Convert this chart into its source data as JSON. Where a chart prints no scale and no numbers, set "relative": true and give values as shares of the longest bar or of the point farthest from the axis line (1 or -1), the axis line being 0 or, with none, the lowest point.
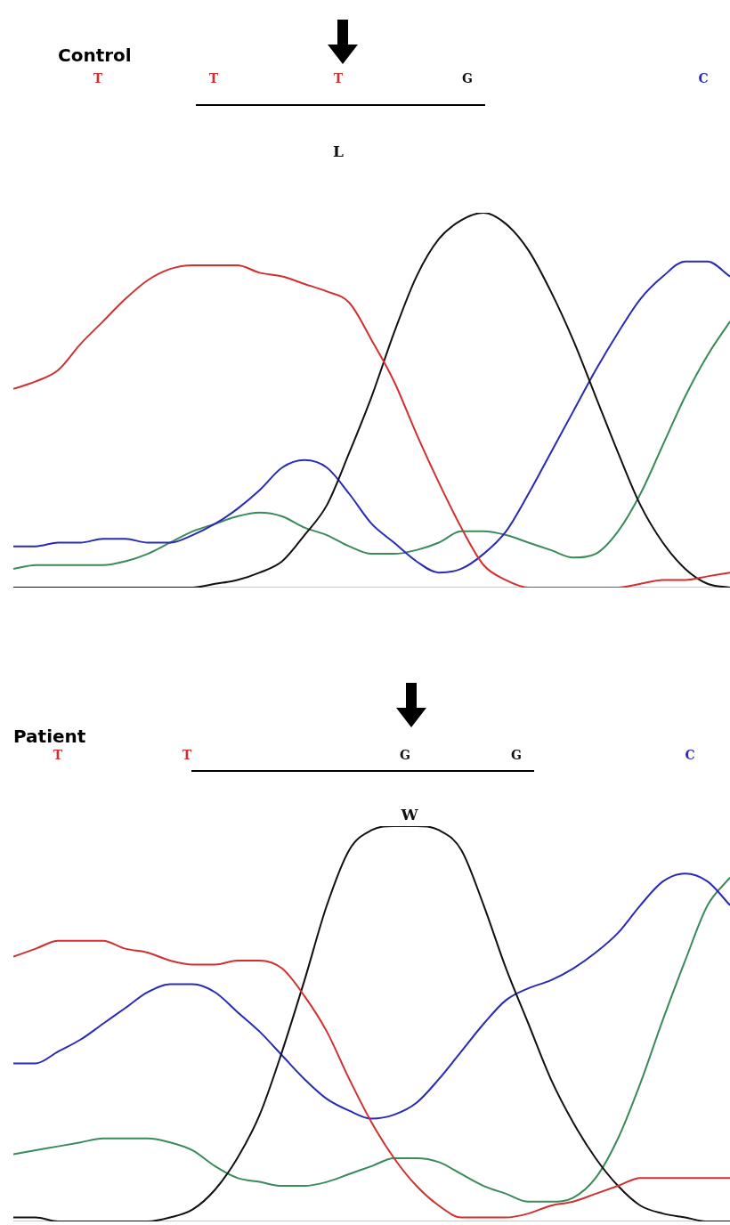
{
  "chart_data": [
    {
      "type": "line",
      "title": "Control",
      "relative": true,
      "annotations": [
        "T",
        "T",
        "T",
        "G",
        "C",
        "L"
      ],
      "categories": [
        null,
        null,
        null,
        null,
        null,
        null,
        null,
        null,
        null,
        null,
        null,
        null,
        null,
        null,
        null,
        null,
        null,
        null,
        null,
        null,
        null,
        null,
        null,
        null,
        null,
        null,
        null,
        null,
        null,
        null,
        null,
        null,
        null
      ],
      "series": [
        {
          "color": "#d03030",
          "values": [
            0.53,
            0.55,
            0.58,
            0.65,
            0.71,
            0.77,
            0.82,
            0.85,
            0.86,
            0.86,
            0.86,
            0.84,
            0.83,
            0.81,
            0.79,
            0.76,
            0.66,
            0.55,
            0.41,
            0.28,
            0.16,
            0.06,
            0.02,
            0,
            0,
            0,
            0,
            0,
            0.01,
            0.02,
            0.02,
            0.03,
            0.04
          ]
        },
        {
          "color": "#111111",
          "values": [
            0,
            0,
            0,
            0,
            0,
            0,
            0,
            0,
            0,
            0.01,
            0.02,
            0.04,
            0.07,
            0.14,
            0.22,
            0.36,
            0.51,
            0.68,
            0.83,
            0.93,
            0.98,
            1,
            0.97,
            0.9,
            0.79,
            0.66,
            0.51,
            0.36,
            0.22,
            0.12,
            0.05,
            0.01,
            0
          ]
        },
        {
          "color": "#2a2ab8",
          "values": [
            0.11,
            0.11,
            0.12,
            0.12,
            0.13,
            0.13,
            0.12,
            0.12,
            0.14,
            0.17,
            0.21,
            0.26,
            0.32,
            0.34,
            0.32,
            0.25,
            0.17,
            0.12,
            0.07,
            0.04,
            0.05,
            0.09,
            0.15,
            0.25,
            0.36,
            0.47,
            0.58,
            0.68,
            0.77,
            0.83,
            0.87,
            0.87,
            0.83
          ]
        },
        {
          "color": "#3a8a5a",
          "values": [
            0.05,
            0.06,
            0.06,
            0.06,
            0.06,
            0.07,
            0.09,
            0.12,
            0.15,
            0.17,
            0.19,
            0.2,
            0.19,
            0.16,
            0.14,
            0.11,
            0.09,
            0.09,
            0.1,
            0.12,
            0.15,
            0.15,
            0.14,
            0.12,
            0.1,
            0.08,
            0.09,
            0.15,
            0.25,
            0.38,
            0.51,
            0.62,
            0.71
          ]
        }
      ]
    },
    {
      "type": "line",
      "title": "Patient",
      "relative": true,
      "annotations": [
        "T",
        "T",
        "G",
        "G",
        "C",
        "W"
      ],
      "categories": [
        null,
        null,
        null,
        null,
        null,
        null,
        null,
        null,
        null,
        null,
        null,
        null,
        null,
        null,
        null,
        null,
        null,
        null,
        null,
        null,
        null,
        null,
        null,
        null,
        null,
        null,
        null,
        null,
        null,
        null,
        null,
        null,
        null
      ],
      "series": [
        {
          "color": "#d03030",
          "values": [
            0.67,
            0.69,
            0.71,
            0.71,
            0.71,
            0.69,
            0.68,
            0.66,
            0.65,
            0.65,
            0.66,
            0.66,
            0.64,
            0.57,
            0.48,
            0.36,
            0.25,
            0.16,
            0.09,
            0.04,
            0.01,
            0.01,
            0.01,
            0.02,
            0.04,
            0.05,
            0.07,
            0.09,
            0.11,
            0.11,
            0.11,
            0.11,
            0.11
          ]
        },
        {
          "color": "#111111",
          "values": [
            0.01,
            0.01,
            0,
            0,
            0,
            0,
            0,
            0.01,
            0.03,
            0.08,
            0.16,
            0.27,
            0.43,
            0.61,
            0.8,
            0.94,
            0.99,
            1,
            1,
            0.99,
            0.94,
            0.8,
            0.64,
            0.5,
            0.36,
            0.25,
            0.16,
            0.09,
            0.04,
            0.02,
            0.01,
            0,
            0
          ]
        },
        {
          "color": "#2a2ab8",
          "values": [
            0.4,
            0.4,
            0.43,
            0.46,
            0.5,
            0.54,
            0.58,
            0.6,
            0.6,
            0.58,
            0.53,
            0.48,
            0.42,
            0.36,
            0.31,
            0.28,
            0.26,
            0.27,
            0.3,
            0.36,
            0.43,
            0.5,
            0.56,
            0.59,
            0.61,
            0.64,
            0.68,
            0.73,
            0.8,
            0.86,
            0.88,
            0.86,
            0.8
          ]
        },
        {
          "color": "#3a8a5a",
          "values": [
            0.17,
            0.18,
            0.19,
            0.2,
            0.21,
            0.21,
            0.21,
            0.2,
            0.18,
            0.14,
            0.11,
            0.1,
            0.09,
            0.09,
            0.1,
            0.12,
            0.14,
            0.16,
            0.16,
            0.15,
            0.12,
            0.09,
            0.07,
            0.05,
            0.05,
            0.06,
            0.11,
            0.21,
            0.35,
            0.51,
            0.66,
            0.8,
            0.87
          ]
        }
      ]
    }
  ]
}
